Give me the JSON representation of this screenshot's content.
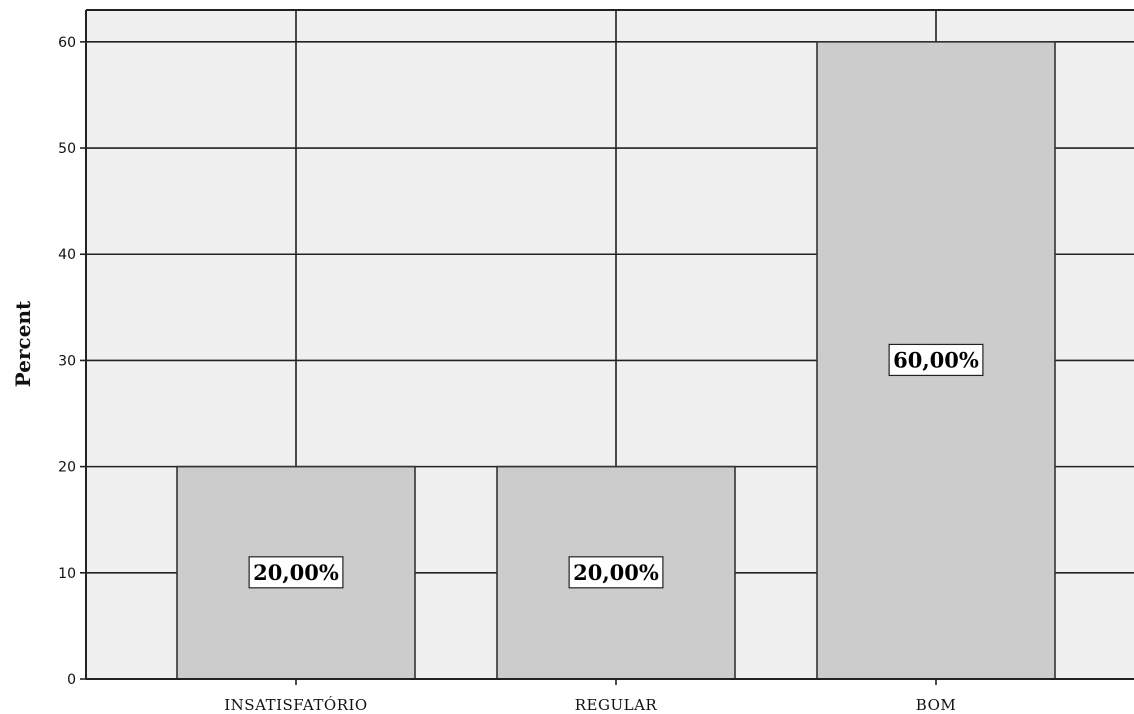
{
  "chart_data": {
    "type": "bar",
    "categories": [
      "INSATISFATÓRIO",
      "REGULAR",
      "BOM"
    ],
    "values": [
      20,
      20,
      60
    ],
    "data_labels": [
      "20,00%",
      "20,00%",
      "60,00%"
    ],
    "title": "",
    "xlabel": "",
    "ylabel": "Percent",
    "ylim": [
      0,
      63
    ],
    "yticks": [
      0,
      10,
      20,
      30,
      40,
      50,
      60
    ],
    "grid": true,
    "colors": {
      "background": "#f0f0f0",
      "bar": "#cccccc",
      "bar_edge": "#333333",
      "grid": "#222222",
      "label_box": "#ffffff"
    }
  }
}
